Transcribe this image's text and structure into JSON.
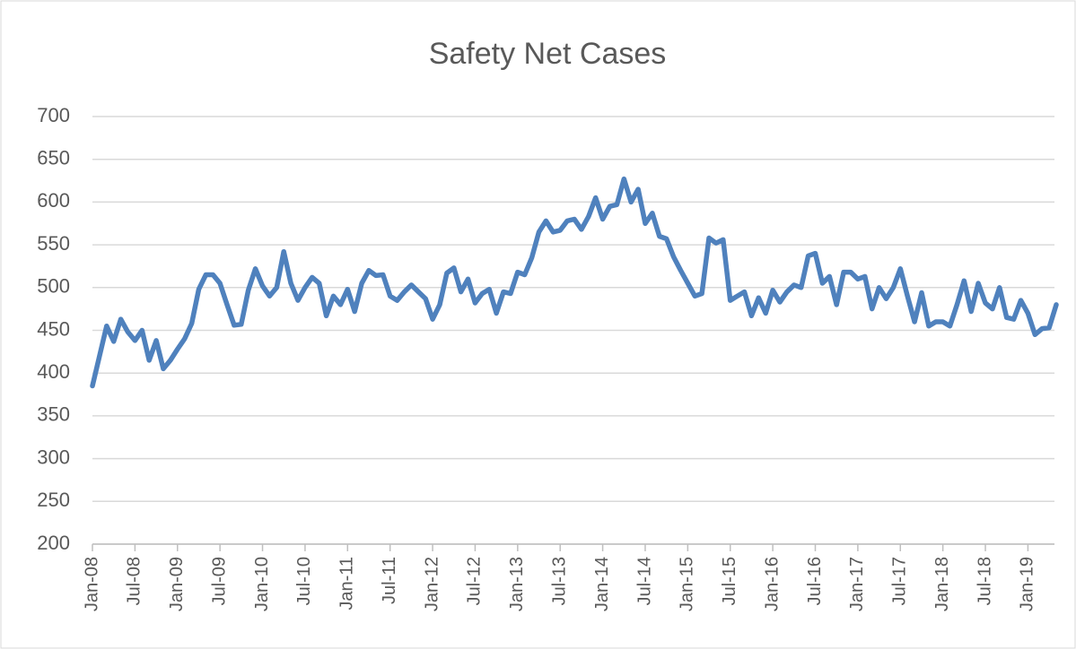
{
  "chart_data": {
    "type": "line",
    "title": "Safety Net Cases",
    "categories": [
      "Jan-08",
      null,
      null,
      null,
      null,
      null,
      "Jul-08",
      null,
      null,
      null,
      null,
      null,
      "Jan-09",
      null,
      null,
      null,
      null,
      null,
      "Jul-09",
      null,
      null,
      null,
      null,
      null,
      "Jan-10",
      null,
      null,
      null,
      null,
      null,
      "Jul-10",
      null,
      null,
      null,
      null,
      null,
      "Jan-11",
      null,
      null,
      null,
      null,
      null,
      "Jul-11",
      null,
      null,
      null,
      null,
      null,
      "Jan-12",
      null,
      null,
      null,
      null,
      null,
      "Jul-12",
      null,
      null,
      null,
      null,
      null,
      "Jan-13",
      null,
      null,
      null,
      null,
      null,
      "Jul-13",
      null,
      null,
      null,
      null,
      null,
      "Jan-14",
      null,
      null,
      null,
      null,
      null,
      "Jul-14",
      null,
      null,
      null,
      null,
      null,
      "Jan-15",
      null,
      null,
      null,
      null,
      null,
      "Jul-15",
      null,
      null,
      null,
      null,
      null,
      "Jan-16",
      null,
      null,
      null,
      null,
      null,
      "Jul-16",
      null,
      null,
      null,
      null,
      null,
      "Jan-17",
      null,
      null,
      null,
      null,
      null,
      "Jul-17",
      null,
      null,
      null,
      null,
      null,
      "Jan-18",
      null,
      null,
      null,
      null,
      null,
      "Jul-18",
      null,
      null,
      null,
      null,
      null,
      "Jan-19",
      null,
      null,
      null,
      null
    ],
    "series": [
      {
        "name": "Safety Net Cases",
        "color": "#4f81bd",
        "values": [
          385,
          420,
          455,
          437,
          463,
          448,
          438,
          450,
          415,
          438,
          405,
          415,
          428,
          440,
          458,
          498,
          515,
          515,
          505,
          480,
          456,
          457,
          497,
          522,
          502,
          490,
          500,
          542,
          505,
          485,
          500,
          512,
          505,
          467,
          490,
          480,
          498,
          472,
          505,
          520,
          514,
          515,
          490,
          485,
          495,
          503,
          495,
          487,
          463,
          480,
          517,
          523,
          495,
          510,
          482,
          493,
          498,
          470,
          495,
          493,
          518,
          515,
          535,
          565,
          578,
          565,
          567,
          578,
          580,
          568,
          583,
          605,
          580,
          595,
          597,
          627,
          600,
          615,
          575,
          587,
          560,
          557,
          536,
          520,
          505,
          490,
          493,
          558,
          552,
          556,
          485,
          490,
          495,
          467,
          488,
          470,
          497,
          483,
          495,
          503,
          500,
          537,
          540,
          505,
          513,
          480,
          518,
          518,
          510,
          513,
          475,
          500,
          487,
          500,
          522,
          490,
          460,
          494,
          455,
          460,
          460,
          455,
          480,
          508,
          472,
          505,
          482,
          475,
          500,
          465,
          463,
          485,
          470,
          445,
          452,
          453,
          480
        ]
      }
    ],
    "ylim": [
      200,
      700
    ],
    "yticks": [
      200,
      250,
      300,
      350,
      400,
      450,
      500,
      550,
      600,
      650,
      700
    ],
    "grid": true
  }
}
